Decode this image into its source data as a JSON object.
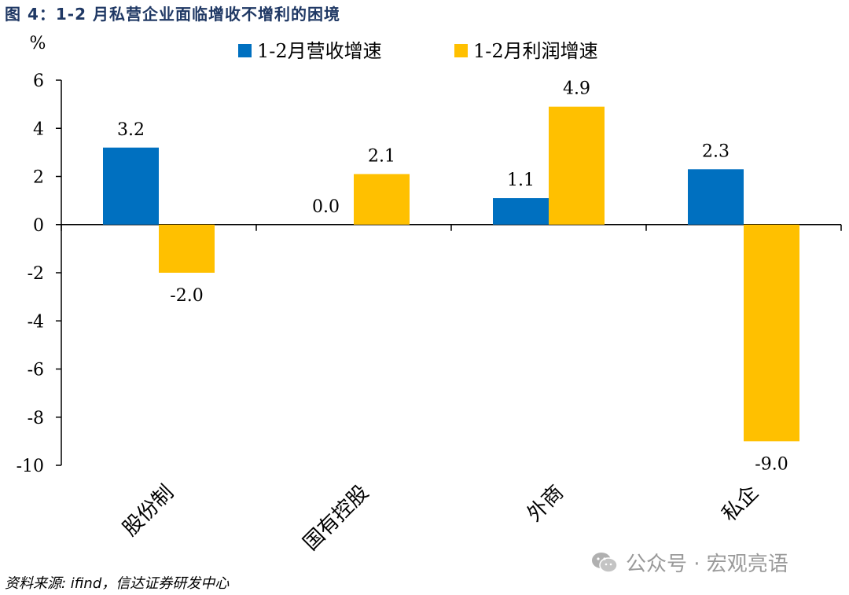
{
  "figure": {
    "title": "图 4：1-2 月私营企业面临增收不增利的困境",
    "source": "资料来源: ifind，信达证券研发中心",
    "watermark": "公众号 · 宏观亮语"
  },
  "colors": {
    "title": "#1f3864",
    "series_revenue": "#0070C0",
    "series_profit": "#FFC000"
  },
  "icons": {
    "watermark_icon": "wechat-icon"
  },
  "chart_data": {
    "type": "bar",
    "title": "1-2 月私营企业面临增收不增利的困境",
    "ylabel": "%",
    "xlabel": "",
    "ylim": [
      -10,
      6
    ],
    "yticks": [
      6,
      4,
      2,
      0,
      -2,
      -4,
      -6,
      -8,
      -10
    ],
    "categories": [
      "股份制",
      "国有控股",
      "外商",
      "私企"
    ],
    "series": [
      {
        "name": "1-2月营收增速",
        "color": "#0070C0",
        "values": [
          3.2,
          0.0,
          1.1,
          2.3
        ],
        "labels": [
          "3.2",
          "0.0",
          "1.1",
          "2.3"
        ]
      },
      {
        "name": "1-2月利润增速",
        "color": "#FFC000",
        "values": [
          -2.0,
          2.1,
          4.9,
          -9.0
        ],
        "labels": [
          "-2.0",
          "2.1",
          "4.9",
          "-9.0"
        ]
      }
    ],
    "legend": "top",
    "grid": false
  }
}
